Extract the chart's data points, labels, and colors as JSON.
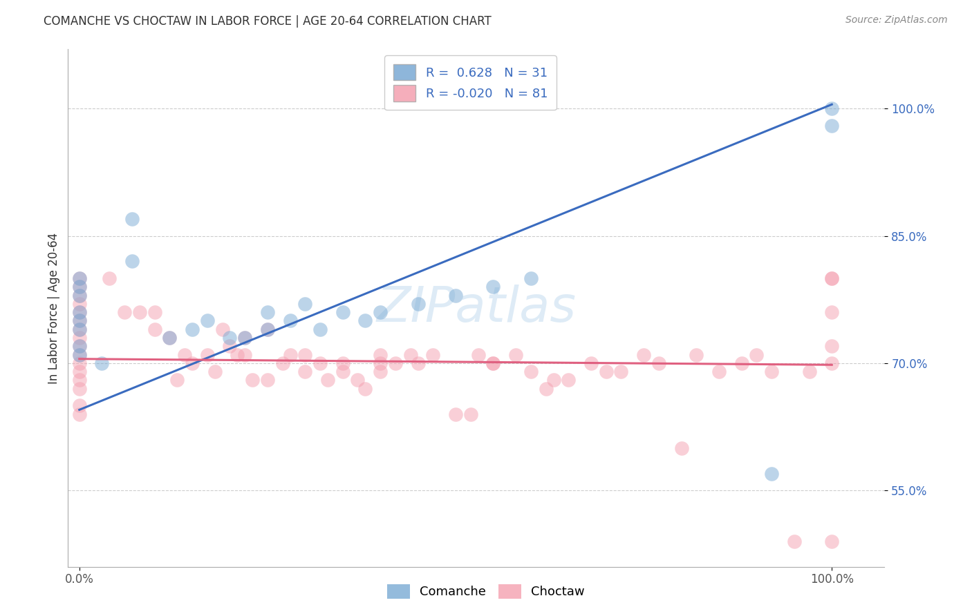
{
  "title": "COMANCHE VS CHOCTAW IN LABOR FORCE | AGE 20-64 CORRELATION CHART",
  "source": "Source: ZipAtlas.com",
  "ylabel": "In Labor Force | Age 20-64",
  "y_tick_positions": [
    0.55,
    0.7,
    0.85,
    1.0
  ],
  "comanche_R": 0.628,
  "comanche_N": 31,
  "choctaw_R": -0.02,
  "choctaw_N": 81,
  "comanche_color": "#7aaad4",
  "choctaw_color": "#f4a0b0",
  "comanche_line_color": "#3a6bbf",
  "choctaw_line_color": "#e06080",
  "comanche_line": [
    [
      0.0,
      0.645
    ],
    [
      1.0,
      1.005
    ]
  ],
  "choctaw_line": [
    [
      0.0,
      0.705
    ],
    [
      1.0,
      0.698
    ]
  ],
  "comanche_x": [
    0.0,
    0.0,
    0.0,
    0.0,
    0.0,
    0.0,
    0.0,
    0.0,
    0.03,
    0.07,
    0.07,
    0.12,
    0.15,
    0.17,
    0.2,
    0.22,
    0.25,
    0.25,
    0.28,
    0.3,
    0.32,
    0.35,
    0.38,
    0.4,
    0.45,
    0.5,
    0.55,
    0.6,
    0.92,
    1.0,
    1.0
  ],
  "comanche_y": [
    0.8,
    0.79,
    0.78,
    0.76,
    0.75,
    0.74,
    0.72,
    0.71,
    0.7,
    0.87,
    0.82,
    0.73,
    0.74,
    0.75,
    0.73,
    0.73,
    0.76,
    0.74,
    0.75,
    0.77,
    0.74,
    0.76,
    0.75,
    0.76,
    0.77,
    0.78,
    0.79,
    0.8,
    0.57,
    1.0,
    0.98
  ],
  "choctaw_x": [
    0.0,
    0.0,
    0.0,
    0.0,
    0.0,
    0.0,
    0.0,
    0.0,
    0.0,
    0.0,
    0.0,
    0.0,
    0.0,
    0.0,
    0.0,
    0.0,
    0.04,
    0.06,
    0.08,
    0.1,
    0.1,
    0.12,
    0.13,
    0.14,
    0.15,
    0.17,
    0.18,
    0.19,
    0.2,
    0.21,
    0.22,
    0.22,
    0.23,
    0.25,
    0.25,
    0.27,
    0.28,
    0.3,
    0.3,
    0.32,
    0.33,
    0.35,
    0.35,
    0.37,
    0.38,
    0.4,
    0.4,
    0.4,
    0.42,
    0.44,
    0.45,
    0.47,
    0.5,
    0.52,
    0.53,
    0.55,
    0.55,
    0.58,
    0.6,
    0.62,
    0.63,
    0.65,
    0.68,
    0.7,
    0.72,
    0.75,
    0.77,
    0.8,
    0.82,
    0.85,
    0.88,
    0.9,
    0.92,
    0.95,
    0.97,
    1.0,
    1.0,
    1.0,
    1.0,
    1.0,
    1.0
  ],
  "choctaw_y": [
    0.8,
    0.79,
    0.78,
    0.77,
    0.76,
    0.75,
    0.74,
    0.73,
    0.72,
    0.71,
    0.7,
    0.69,
    0.68,
    0.67,
    0.65,
    0.64,
    0.8,
    0.76,
    0.76,
    0.76,
    0.74,
    0.73,
    0.68,
    0.71,
    0.7,
    0.71,
    0.69,
    0.74,
    0.72,
    0.71,
    0.73,
    0.71,
    0.68,
    0.74,
    0.68,
    0.7,
    0.71,
    0.71,
    0.69,
    0.7,
    0.68,
    0.69,
    0.7,
    0.68,
    0.67,
    0.71,
    0.7,
    0.69,
    0.7,
    0.71,
    0.7,
    0.71,
    0.64,
    0.64,
    0.71,
    0.7,
    0.7,
    0.71,
    0.69,
    0.67,
    0.68,
    0.68,
    0.7,
    0.69,
    0.69,
    0.71,
    0.7,
    0.6,
    0.71,
    0.69,
    0.7,
    0.71,
    0.69,
    0.49,
    0.69,
    0.7,
    0.72,
    0.76,
    0.8,
    0.49,
    0.8
  ]
}
